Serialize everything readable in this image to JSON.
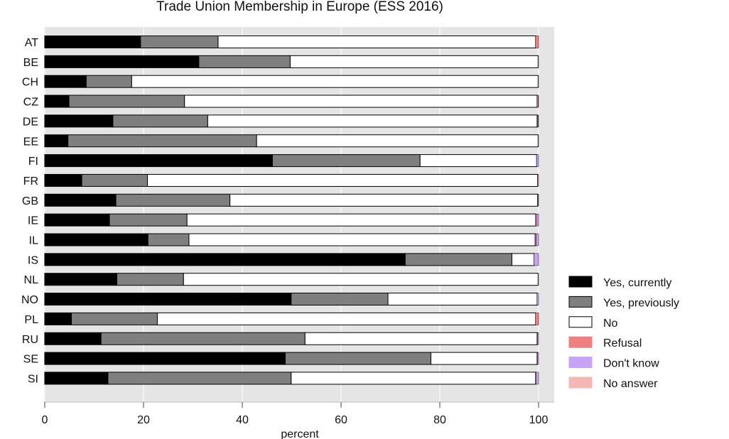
{
  "chart_data": {
    "type": "bar",
    "orientation": "horizontal",
    "stacked": true,
    "title": "Trade Union Membership in Europe (ESS 2016)",
    "xlabel": "percent",
    "ylabel": "",
    "xlim": [
      0,
      100
    ],
    "xticks": [
      0,
      20,
      40,
      60,
      80,
      100
    ],
    "grid": true,
    "legend_position": "right",
    "categories": [
      "AT",
      "BE",
      "CH",
      "CZ",
      "DE",
      "EE",
      "FI",
      "FR",
      "GB",
      "IE",
      "IL",
      "IS",
      "NL",
      "NO",
      "PL",
      "RU",
      "SE",
      "SI"
    ],
    "series": [
      {
        "name": "Yes, currently",
        "color": "#000000",
        "values": [
          19.4,
          31.2,
          8.4,
          4.9,
          13.8,
          4.7,
          46.1,
          7.5,
          14.4,
          13.1,
          20.9,
          73.0,
          14.6,
          49.9,
          5.4,
          11.4,
          48.7,
          12.8
        ]
      },
      {
        "name": "Yes, previously",
        "color": "#7f7f7f",
        "values": [
          15.7,
          18.5,
          9.2,
          23.4,
          19.2,
          38.2,
          29.9,
          13.3,
          23.1,
          15.7,
          8.3,
          21.6,
          13.5,
          19.6,
          17.4,
          41.3,
          29.5,
          37.1
        ]
      },
      {
        "name": "No",
        "color": "#ffffff",
        "values": [
          64.3,
          50.2,
          82.3,
          71.4,
          66.7,
          57.0,
          23.6,
          79.0,
          62.3,
          70.6,
          70.1,
          4.5,
          71.8,
          30.2,
          76.6,
          47.0,
          21.5,
          49.5
        ]
      },
      {
        "name": "Refusal",
        "color": "#f08080",
        "values": [
          0.6,
          0.0,
          0.0,
          0.2,
          0.1,
          0.0,
          0.0,
          0.2,
          0.1,
          0.2,
          0.2,
          0.0,
          0.0,
          0.0,
          0.6,
          0.1,
          0.1,
          0.1
        ]
      },
      {
        "name": "Don't know",
        "color": "#c8a2f5",
        "values": [
          0.0,
          0.1,
          0.1,
          0.1,
          0.1,
          0.1,
          0.4,
          0.0,
          0.1,
          0.4,
          0.5,
          0.9,
          0.1,
          0.3,
          0.0,
          0.2,
          0.2,
          0.5
        ]
      },
      {
        "name": "No answer",
        "color": "#f4b8b4",
        "values": [
          0.0,
          0.0,
          0.0,
          0.0,
          0.1,
          0.0,
          0.0,
          0.0,
          0.0,
          0.0,
          0.0,
          0.0,
          0.0,
          0.0,
          0.0,
          0.0,
          0.0,
          0.0
        ]
      }
    ]
  }
}
